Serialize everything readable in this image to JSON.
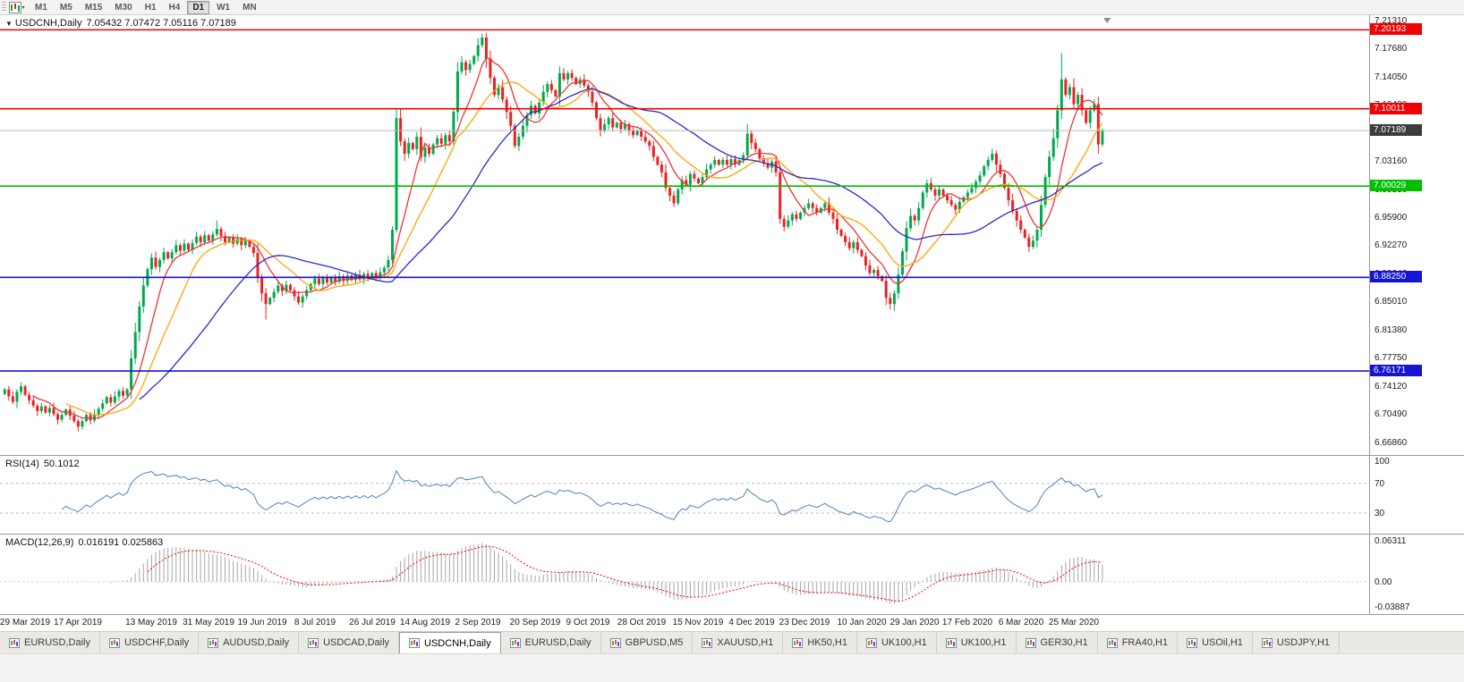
{
  "toolbar": {
    "periods": [
      "M1",
      "M5",
      "M15",
      "M30",
      "H1",
      "H4",
      "D1",
      "W1",
      "MN"
    ],
    "active_period": "D1"
  },
  "chart": {
    "symbol_period": "USDCNH,Daily",
    "ohlc_text": "7.05432 7.07472 7.05116 7.07189",
    "axis_labels": [
      "7.21310",
      "7.17680",
      "7.14050",
      "7.10420",
      "7.06790",
      "7.03160",
      "6.99530",
      "6.95900",
      "6.92270",
      "6.88640",
      "6.85010",
      "6.81380",
      "6.77750",
      "6.74120",
      "6.70490",
      "6.66860"
    ],
    "levels": [
      {
        "price": 7.20193,
        "label": "7.20193",
        "color": "#f00000"
      },
      {
        "price": 7.10011,
        "label": "7.10011",
        "color": "#f00000"
      },
      {
        "price": 7.00029,
        "label": "7.00029",
        "color": "#00c000"
      },
      {
        "price": 6.8825,
        "label": "6.88250",
        "color": "#1414d2"
      },
      {
        "price": 6.76171,
        "label": "6.76171",
        "color": "#1414d2"
      }
    ],
    "bid": {
      "price": 7.07189,
      "label": "7.07189",
      "line_color": "#b8b8b8",
      "badge_color": "#3c3c3c"
    },
    "moving_averages": [
      {
        "period": 8,
        "color": "#f03434"
      },
      {
        "period": 16,
        "color": "#ffa400"
      },
      {
        "period": 34,
        "color": "#2929cc"
      }
    ],
    "bull_color": "#00a94f",
    "bear_color": "#ec2121"
  },
  "chart_data": {
    "type": "candlestick",
    "symbol": "USDCNH",
    "timeframe": "Daily",
    "price_min": 6.658,
    "price_max": 7.2185,
    "closes": [
      6.738,
      6.729,
      6.722,
      6.735,
      6.742,
      6.731,
      6.724,
      6.717,
      6.71,
      6.716,
      6.708,
      6.714,
      6.706,
      6.699,
      6.705,
      6.712,
      6.704,
      6.697,
      6.69,
      6.697,
      6.705,
      6.698,
      6.706,
      6.713,
      6.72,
      6.728,
      6.721,
      6.729,
      6.736,
      6.73,
      6.738,
      6.778,
      6.812,
      6.845,
      6.872,
      6.893,
      6.908,
      6.896,
      6.905,
      6.915,
      6.907,
      6.915,
      6.924,
      6.917,
      6.926,
      6.918,
      6.927,
      6.935,
      6.928,
      6.937,
      6.93,
      6.938,
      6.945,
      6.936,
      6.928,
      6.934,
      6.926,
      6.932,
      6.924,
      6.93,
      6.922,
      6.914,
      6.882,
      6.862,
      6.848,
      6.856,
      6.864,
      6.872,
      6.865,
      6.873,
      6.866,
      6.858,
      6.85,
      6.858,
      6.866,
      6.874,
      6.881,
      6.874,
      6.882,
      6.876,
      6.883,
      6.877,
      6.884,
      6.878,
      6.885,
      6.879,
      6.886,
      6.88,
      6.887,
      6.881,
      6.888,
      6.882,
      6.889,
      6.895,
      6.905,
      6.944,
      7.088,
      7.058,
      7.042,
      7.056,
      7.048,
      7.064,
      7.038,
      7.05,
      7.042,
      7.054,
      7.062,
      7.055,
      7.066,
      7.058,
      7.096,
      7.148,
      7.16,
      7.15,
      7.158,
      7.168,
      7.182,
      7.192,
      7.165,
      7.14,
      7.118,
      7.128,
      7.112,
      7.096,
      7.078,
      7.052,
      7.064,
      7.078,
      7.092,
      7.104,
      7.094,
      7.108,
      7.122,
      7.132,
      7.124,
      7.116,
      7.146,
      7.138,
      7.146,
      7.14,
      7.132,
      7.138,
      7.13,
      7.122,
      7.108,
      7.088,
      7.072,
      7.08,
      7.088,
      7.076,
      7.082,
      7.074,
      7.08,
      7.072,
      7.066,
      7.072,
      7.064,
      7.058,
      7.052,
      7.038,
      7.028,
      7.018,
      6.998,
      6.988,
      6.978,
      6.996,
      7.008,
      7.002,
      7.016,
      7.01,
      7.004,
      7.012,
      7.022,
      7.028,
      7.034,
      7.028,
      7.034,
      7.028,
      7.035,
      7.028,
      7.034,
      7.04,
      7.068,
      7.056,
      7.048,
      7.036,
      7.03,
      7.024,
      7.032,
      7.018,
      6.958,
      6.948,
      6.956,
      6.964,
      6.958,
      6.966,
      6.972,
      6.978,
      6.972,
      6.966,
      6.972,
      6.978,
      6.966,
      6.958,
      6.944,
      6.936,
      6.928,
      6.92,
      6.928,
      6.918,
      6.91,
      6.898,
      6.888,
      6.892,
      6.884,
      6.878,
      6.856,
      6.848,
      6.862,
      6.886,
      6.916,
      6.946,
      6.962,
      6.956,
      6.972,
      6.992,
      7.004,
      6.996,
      6.988,
      6.996,
      6.988,
      6.982,
      6.976,
      6.97,
      6.98,
      6.986,
      6.992,
      6.998,
      7.006,
      7.014,
      7.026,
      7.034,
      7.042,
      7.028,
      7.016,
      6.998,
      6.982,
      6.968,
      6.956,
      6.944,
      6.934,
      6.922,
      6.93,
      6.944,
      6.976,
      7.012,
      7.038,
      7.062,
      7.098,
      7.138,
      7.118,
      7.128,
      7.106,
      7.118,
      7.098,
      7.082,
      7.098,
      7.106,
      7.054,
      7.072
    ],
    "wick_overrides": {
      "18": {
        "l": 6.684
      },
      "52": {
        "h": 6.956
      },
      "64": {
        "l": 6.828
      },
      "96": {
        "l": 6.94
      },
      "116": {
        "h": 7.191
      },
      "117": {
        "h": 7.197
      },
      "217": {
        "l": 6.841
      },
      "259": {
        "h": 7.172
      },
      "269": {
        "h": 7.0747,
        "l": 7.0512
      }
    }
  },
  "rsi": {
    "name": "RSI(14)",
    "value": "50.1012",
    "period": 14,
    "line_color": "#4f81bd",
    "labels": [
      {
        "v": 100,
        "t": "100"
      },
      {
        "v": 70,
        "t": "70"
      },
      {
        "v": 30,
        "t": "30"
      }
    ],
    "dashed_levels": [
      70,
      30
    ]
  },
  "macd": {
    "name": "MACD(12,26,9)",
    "values": "0.016191 0.025863",
    "fast": 12,
    "slow": 26,
    "signal": 9,
    "hist_color": "#a6a6a6",
    "signal_color": "#ff0000",
    "vmax": 0.068,
    "vmin": -0.044,
    "labels": [
      {
        "v": 0.06311,
        "t": "0.06311"
      },
      {
        "v": 0.0,
        "t": "0.00"
      },
      {
        "v": -0.03887,
        "t": "-0.03887"
      }
    ]
  },
  "dates": [
    {
      "t": "29 Mar 2019",
      "i": 5
    },
    {
      "t": "17 Apr 2019",
      "i": 18
    },
    {
      "t": "13 May 2019",
      "i": 36
    },
    {
      "t": "31 May 2019",
      "i": 50
    },
    {
      "t": "19 Jun 2019",
      "i": 63
    },
    {
      "t": "8 Jul 2019",
      "i": 76
    },
    {
      "t": "26 Jul 2019",
      "i": 90
    },
    {
      "t": "14 Aug 2019",
      "i": 103
    },
    {
      "t": "2 Sep 2019",
      "i": 116
    },
    {
      "t": "20 Sep 2019",
      "i": 130
    },
    {
      "t": "9 Oct 2019",
      "i": 143
    },
    {
      "t": "28 Oct 2019",
      "i": 156
    },
    {
      "t": "15 Nov 2019",
      "i": 170
    },
    {
      "t": "4 Dec 2019",
      "i": 183
    },
    {
      "t": "23 Dec 2019",
      "i": 196
    },
    {
      "t": "10 Jan 2020",
      "i": 210
    },
    {
      "t": "29 Jan 2020",
      "i": 223
    },
    {
      "t": "17 Feb 2020",
      "i": 236
    },
    {
      "t": "6 Mar 2020",
      "i": 249
    },
    {
      "t": "25 Mar 2020",
      "i": 262
    }
  ],
  "tabs": [
    {
      "label": "EURUSD,Daily",
      "active": false
    },
    {
      "label": "USDCHF,Daily",
      "active": false
    },
    {
      "label": "AUDUSD,Daily",
      "active": false
    },
    {
      "label": "USDCAD,Daily",
      "active": false
    },
    {
      "label": "USDCNH,Daily",
      "active": true
    },
    {
      "label": "EURUSD,Daily",
      "active": false
    },
    {
      "label": "GBPUSD,M5",
      "active": false
    },
    {
      "label": "XAUUSD,H1",
      "active": false
    },
    {
      "label": "HK50,H1",
      "active": false
    },
    {
      "label": "UK100,H1",
      "active": false
    },
    {
      "label": "UK100,H1",
      "active": false
    },
    {
      "label": "GER30,H1",
      "active": false
    },
    {
      "label": "FRA40,H1",
      "active": false
    },
    {
      "label": "USOil,H1",
      "active": false
    },
    {
      "label": "USDJPY,H1",
      "active": false
    }
  ]
}
